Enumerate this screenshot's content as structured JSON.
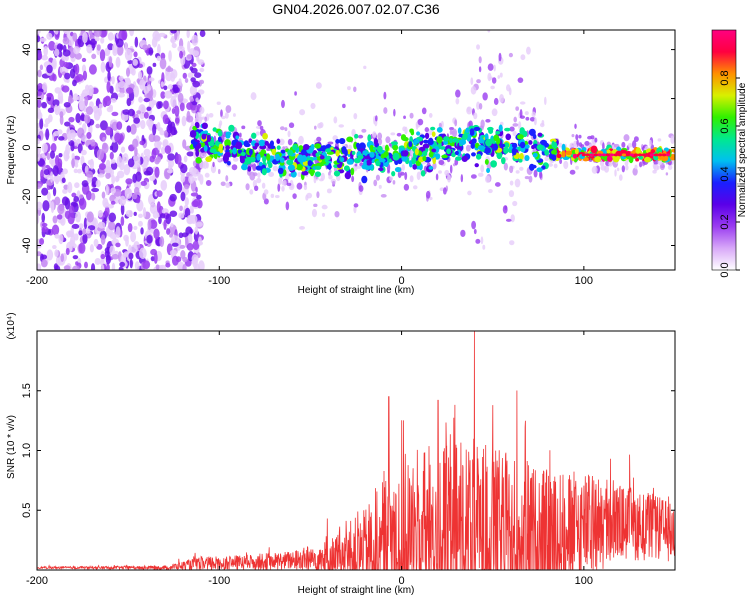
{
  "title": "GN04.2026.007.02.07.C36",
  "chart_data": [
    {
      "type": "heatmap",
      "name": "spectrogram",
      "xlabel": "Height of straight line (km)",
      "ylabel": "Frequency (Hz)",
      "xlim": [
        -200,
        150
      ],
      "ylim": [
        -50,
        48
      ],
      "xticks": [
        -200,
        -100,
        0,
        100
      ],
      "yticks": [
        -40,
        -20,
        0,
        20,
        40
      ],
      "colorbar": {
        "label": "Normalized spectral amplitude",
        "range": [
          0,
          1
        ],
        "ticks": [
          "0.0",
          "0.2",
          "0.4",
          "0.6",
          "0.8"
        ],
        "colors": [
          "#ffffff",
          "#d8a8f8",
          "#9a3cf0",
          "#5a00e8",
          "#1a20ff",
          "#00c0f0",
          "#00e890",
          "#30f000",
          "#d8f000",
          "#ff9000",
          "#ff0040",
          "#ff0080"
        ]
      },
      "noise_region_x": [
        -200,
        -115
      ],
      "line_trace": [
        {
          "x": -120,
          "f": 5
        },
        {
          "x": -100,
          "f": 0
        },
        {
          "x": -80,
          "f": -3
        },
        {
          "x": -60,
          "f": -5
        },
        {
          "x": -40,
          "f": -4
        },
        {
          "x": -20,
          "f": -3
        },
        {
          "x": 0,
          "f": -2
        },
        {
          "x": 20,
          "f": 0
        },
        {
          "x": 40,
          "f": 2
        },
        {
          "x": 60,
          "f": 0
        },
        {
          "x": 80,
          "f": -2
        },
        {
          "x": 100,
          "f": -3
        },
        {
          "x": 150,
          "f": -3
        }
      ]
    },
    {
      "type": "line",
      "name": "snr",
      "xlabel": "Height of straight line (km)",
      "ylabel": "SNR (10 * v/v)",
      "scale_label": "(x10⁴)",
      "xlim": [
        -200,
        150
      ],
      "ylim": [
        0,
        2.0
      ],
      "xticks": [
        -200,
        -100,
        0,
        100
      ],
      "yticks": [
        0.5,
        1.0,
        1.5
      ],
      "ytick_labels": [
        "0.5",
        "1.0",
        "1.5"
      ],
      "color": "#ee3333",
      "envelope": [
        {
          "x": -200,
          "base": 0.02,
          "amp": 0.01
        },
        {
          "x": -130,
          "base": 0.02,
          "amp": 0.02
        },
        {
          "x": -110,
          "base": 0.05,
          "amp": 0.08
        },
        {
          "x": -90,
          "base": 0.06,
          "amp": 0.08
        },
        {
          "x": -60,
          "base": 0.08,
          "amp": 0.1
        },
        {
          "x": -40,
          "base": 0.1,
          "amp": 0.2
        },
        {
          "x": -20,
          "base": 0.15,
          "amp": 0.45
        },
        {
          "x": -10,
          "base": 0.2,
          "amp": 0.8
        },
        {
          "x": 0,
          "base": 0.25,
          "amp": 0.9
        },
        {
          "x": 20,
          "base": 0.3,
          "amp": 0.95
        },
        {
          "x": 40,
          "base": 0.3,
          "amp": 1.0
        },
        {
          "x": 60,
          "base": 0.25,
          "amp": 0.9
        },
        {
          "x": 80,
          "base": 0.2,
          "amp": 0.8
        },
        {
          "x": 100,
          "base": 0.35,
          "amp": 0.6
        },
        {
          "x": 120,
          "base": 0.4,
          "amp": 0.4
        },
        {
          "x": 140,
          "base": 0.35,
          "amp": 0.35
        },
        {
          "x": 150,
          "base": 0.3,
          "amp": 0.3
        }
      ],
      "peaks": [
        {
          "x": 40,
          "y": 2.0
        },
        {
          "x": -7,
          "y": 1.45
        },
        {
          "x": 20,
          "y": 1.42
        },
        {
          "x": 50,
          "y": 1.38
        }
      ]
    }
  ]
}
